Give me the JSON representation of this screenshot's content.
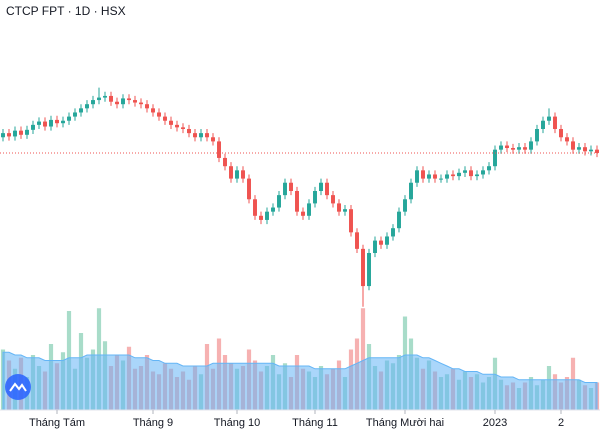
{
  "chart_data": {
    "type": "candlestick",
    "title": "CTCP FPT · 1D · HSX",
    "open": [
      81.5,
      82.0,
      81.6,
      82.3,
      81.8,
      82.4,
      83.0,
      83.4,
      82.8,
      83.6,
      83.2,
      83.5,
      84.0,
      84.5,
      85.0,
      85.5,
      86.0,
      86.3,
      86.5,
      85.8,
      85.5,
      86.2,
      86.0,
      85.7,
      85.5,
      85.0,
      84.5,
      84.0,
      83.5,
      83.0,
      82.7,
      82.5,
      82.0,
      81.5,
      82.0,
      81.5,
      81.0,
      79.0,
      78.0,
      76.5,
      77.5,
      76.5,
      74.0,
      72.0,
      71.5,
      72.5,
      73.0,
      74.5,
      76.0,
      75.0,
      72.5,
      72.0,
      73.5,
      75.0,
      76.0,
      74.5,
      73.5,
      72.5,
      72.8,
      70.0,
      68.0,
      63.5,
      67.5,
      69.0,
      68.5,
      69.5,
      70.5,
      72.5,
      74.0,
      76.0,
      77.5,
      76.5,
      77.0,
      76.5,
      76.5,
      77.0,
      76.8,
      77.2,
      77.5,
      76.8,
      77.0,
      77.5,
      78.0,
      80.0,
      80.5,
      80.2,
      80.0,
      80.3,
      80.0,
      81.0,
      82.5,
      83.5,
      84.0,
      82.5,
      81.5,
      81.0,
      80.0,
      80.3,
      79.8,
      80.0
    ],
    "high": [
      82.5,
      82.5,
      82.8,
      82.8,
      82.9,
      83.5,
      83.9,
      83.9,
      84.1,
      84.1,
      84.0,
      84.5,
      85.0,
      85.5,
      86.0,
      86.5,
      87.5,
      87.0,
      87.0,
      86.3,
      86.7,
      86.7,
      86.5,
      86.2,
      86.0,
      85.5,
      85.0,
      84.5,
      84.0,
      83.5,
      83.2,
      83.0,
      82.5,
      82.5,
      82.5,
      82.0,
      81.5,
      79.5,
      78.5,
      78.0,
      78.0,
      77.0,
      74.5,
      72.5,
      73.0,
      73.5,
      75.0,
      76.5,
      76.5,
      75.5,
      73.0,
      74.0,
      75.5,
      76.5,
      76.5,
      75.0,
      74.0,
      73.3,
      73.3,
      70.5,
      68.5,
      68.0,
      69.5,
      69.5,
      70.0,
      71.0,
      73.0,
      74.5,
      76.5,
      78.0,
      78.0,
      77.5,
      77.5,
      77.0,
      77.5,
      77.5,
      77.7,
      78.0,
      78.0,
      77.5,
      78.0,
      78.5,
      80.5,
      81.0,
      81.0,
      80.7,
      80.8,
      80.8,
      81.5,
      83.0,
      84.0,
      85.0,
      84.5,
      83.0,
      82.0,
      81.5,
      80.8,
      80.8,
      80.5,
      80.5
    ],
    "low": [
      81.0,
      81.1,
      81.1,
      81.3,
      81.3,
      81.9,
      82.5,
      82.3,
      82.3,
      82.7,
      82.7,
      83.0,
      83.5,
      84.0,
      84.5,
      85.0,
      85.5,
      85.8,
      85.3,
      85.0,
      85.0,
      85.5,
      85.2,
      85.0,
      84.5,
      84.0,
      83.5,
      83.0,
      82.5,
      82.2,
      82.0,
      81.5,
      81.0,
      81.0,
      81.0,
      80.5,
      78.5,
      77.5,
      76.0,
      76.0,
      76.0,
      73.5,
      71.5,
      71.0,
      71.0,
      72.0,
      72.5,
      74.0,
      74.5,
      72.0,
      71.5,
      71.5,
      73.0,
      74.5,
      74.0,
      73.0,
      72.0,
      72.0,
      69.5,
      67.5,
      61.0,
      63.0,
      67.0,
      68.0,
      68.0,
      69.0,
      70.0,
      72.0,
      73.5,
      75.5,
      76.0,
      76.0,
      76.0,
      76.0,
      76.0,
      76.3,
      76.3,
      76.7,
      76.3,
      76.3,
      76.5,
      77.0,
      77.5,
      79.5,
      79.7,
      79.5,
      79.5,
      79.5,
      79.5,
      80.5,
      82.0,
      83.0,
      82.0,
      81.0,
      80.5,
      79.5,
      79.5,
      79.3,
      79.3,
      79.1
    ],
    "close": [
      82.0,
      81.6,
      82.3,
      81.8,
      82.4,
      83.0,
      83.4,
      82.8,
      83.6,
      83.2,
      83.5,
      84.0,
      84.5,
      85.0,
      85.5,
      86.0,
      86.3,
      86.5,
      85.8,
      85.5,
      86.2,
      86.0,
      85.7,
      85.5,
      85.0,
      84.5,
      84.0,
      83.5,
      83.0,
      82.7,
      82.5,
      82.0,
      81.5,
      82.0,
      81.5,
      81.0,
      79.0,
      78.0,
      76.5,
      77.5,
      76.5,
      74.0,
      72.0,
      71.5,
      72.5,
      73.0,
      74.5,
      76.0,
      75.0,
      72.5,
      72.0,
      73.5,
      75.0,
      76.0,
      74.5,
      73.5,
      72.5,
      72.8,
      70.0,
      68.0,
      63.5,
      67.5,
      69.0,
      68.5,
      69.5,
      70.5,
      72.5,
      74.0,
      76.0,
      77.5,
      76.5,
      77.0,
      76.5,
      76.5,
      77.0,
      76.8,
      77.2,
      77.5,
      76.8,
      77.0,
      77.5,
      78.0,
      80.0,
      80.5,
      80.2,
      80.0,
      80.3,
      80.0,
      81.0,
      82.5,
      83.5,
      84.0,
      82.5,
      81.5,
      81.0,
      80.0,
      80.3,
      79.8,
      80.0,
      79.6
    ],
    "volume": [
      2.2,
      1.8,
      1.5,
      1.9,
      1.2,
      2.0,
      1.6,
      1.4,
      2.4,
      1.7,
      2.1,
      3.6,
      1.5,
      2.8,
      1.9,
      2.2,
      3.7,
      2.5,
      1.6,
      2.0,
      1.8,
      2.3,
      1.5,
      1.6,
      2.0,
      1.4,
      1.3,
      1.7,
      1.5,
      1.2,
      1.4,
      1.1,
      1.6,
      1.3,
      2.4,
      1.5,
      2.6,
      2.0,
      1.7,
      1.5,
      1.6,
      2.2,
      1.8,
      1.4,
      1.6,
      2.0,
      1.3,
      1.7,
      1.2,
      2.0,
      1.5,
      1.4,
      1.2,
      1.6,
      1.3,
      1.5,
      1.8,
      1.2,
      2.2,
      2.6,
      3.7,
      2.4,
      1.6,
      1.4,
      1.8,
      1.7,
      2.0,
      3.4,
      2.6,
      1.9,
      1.5,
      1.8,
      1.4,
      1.2,
      1.3,
      1.5,
      1.1,
      1.4,
      1.2,
      1.3,
      1.0,
      1.2,
      1.9,
      1.1,
      0.9,
      1.0,
      0.8,
      1.0,
      1.2,
      0.9,
      1.1,
      1.6,
      1.3,
      1.0,
      1.2,
      1.9,
      1.1,
      0.9,
      0.8,
      1.0
    ],
    "volume_ma": [
      2.1,
      2.1,
      2.0,
      2.0,
      1.9,
      1.9,
      1.9,
      1.8,
      1.8,
      1.8,
      1.8,
      1.9,
      1.9,
      1.9,
      2.0,
      2.0,
      2.0,
      2.0,
      2.0,
      2.0,
      2.0,
      2.0,
      1.9,
      1.9,
      1.9,
      1.8,
      1.8,
      1.7,
      1.7,
      1.7,
      1.6,
      1.6,
      1.6,
      1.6,
      1.6,
      1.7,
      1.7,
      1.7,
      1.7,
      1.7,
      1.7,
      1.7,
      1.7,
      1.7,
      1.7,
      1.7,
      1.6,
      1.6,
      1.6,
      1.6,
      1.6,
      1.6,
      1.5,
      1.5,
      1.5,
      1.5,
      1.5,
      1.5,
      1.6,
      1.7,
      1.8,
      1.9,
      1.9,
      1.9,
      1.9,
      1.9,
      1.9,
      2.0,
      2.0,
      2.0,
      1.9,
      1.9,
      1.8,
      1.7,
      1.6,
      1.5,
      1.5,
      1.4,
      1.4,
      1.4,
      1.3,
      1.3,
      1.3,
      1.2,
      1.2,
      1.2,
      1.1,
      1.1,
      1.1,
      1.1,
      1.1,
      1.1,
      1.1,
      1.1,
      1.1,
      1.1,
      1.1,
      1.0,
      1.0,
      1.0
    ],
    "ylim": [
      60,
      90
    ],
    "volume_ylim": [
      0,
      4
    ],
    "xticks": [
      {
        "value": 9,
        "label": "Tháng Tám"
      },
      {
        "value": 25,
        "label": "Tháng 9"
      },
      {
        "value": 39,
        "label": "Tháng 10"
      },
      {
        "value": 52,
        "label": "Tháng 11"
      },
      {
        "value": 67,
        "label": "Tháng Mười hai"
      },
      {
        "value": 82,
        "label": "2023"
      },
      {
        "value": 93,
        "label": "2"
      }
    ],
    "up_color": "#26a69a",
    "down_color": "#ef5350",
    "volume_up_color": "#a8dcc9",
    "volume_down_color": "#f6b1b1",
    "volume_ma_color": "#64b5f6",
    "last_price_line": true,
    "grid": false
  }
}
